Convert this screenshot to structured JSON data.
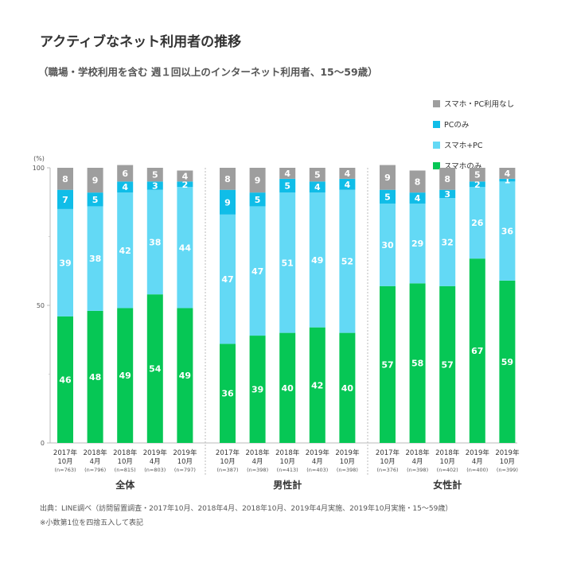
{
  "title": "アクティブなネット利用者の推移",
  "subtitle": "（職場・学校利用を含む 週１回以上のインターネット利用者、15〜59歳）",
  "source": "出典：LINE調べ（訪問留置調査・2017年10月、2018年4月、2018年10月、2019年4月実施、2019年10月実施・15〜59歳）",
  "note": "※小数第1位を四捨五入して表記",
  "chart_data": {
    "type": "bar",
    "stacked": true,
    "y_unit": "(%)",
    "ylim": [
      0,
      100
    ],
    "yticks": [
      0,
      50,
      100
    ],
    "legend_position": "top-right",
    "series": [
      {
        "name": "スマホのみ",
        "color": "#06c755"
      },
      {
        "name": "スマホ+PC",
        "color": "#63d9f5"
      },
      {
        "name": "PCのみ",
        "color": "#10bde8"
      },
      {
        "name": "スマホ・PC利用なし",
        "color": "#9e9e9e"
      }
    ],
    "legend_order": [
      3,
      2,
      1,
      0
    ],
    "groups": [
      {
        "name": "全体",
        "bars": [
          {
            "line1": "2017年",
            "line2": "10月",
            "n": "(n=763)",
            "values": [
              46,
              39,
              7,
              8
            ]
          },
          {
            "line1": "2018年",
            "line2": "4月",
            "n": "(n=796)",
            "values": [
              48,
              38,
              5,
              9
            ]
          },
          {
            "line1": "2018年",
            "line2": "10月",
            "n": "(n=815)",
            "values": [
              49,
              42,
              4,
              6
            ]
          },
          {
            "line1": "2019年",
            "line2": "4月",
            "n": "(n=803)",
            "values": [
              54,
              38,
              3,
              5
            ]
          },
          {
            "line1": "2019年",
            "line2": "10月",
            "n": "(n=797)",
            "values": [
              49,
              44,
              2,
              4
            ]
          }
        ]
      },
      {
        "name": "男性計",
        "bars": [
          {
            "line1": "2017年",
            "line2": "10月",
            "n": "(n=387)",
            "values": [
              36,
              47,
              9,
              8
            ]
          },
          {
            "line1": "2018年",
            "line2": "4月",
            "n": "(n=398)",
            "values": [
              39,
              47,
              5,
              9
            ]
          },
          {
            "line1": "2018年",
            "line2": "10月",
            "n": "(n=413)",
            "values": [
              40,
              51,
              5,
              4
            ]
          },
          {
            "line1": "2019年",
            "line2": "4月",
            "n": "(n=403)",
            "values": [
              42,
              49,
              4,
              5
            ]
          },
          {
            "line1": "2019年",
            "line2": "10月",
            "n": "(n=398)",
            "values": [
              40,
              52,
              4,
              4
            ]
          }
        ]
      },
      {
        "name": "女性計",
        "bars": [
          {
            "line1": "2017年",
            "line2": "10月",
            "n": "(n=376)",
            "values": [
              57,
              30,
              5,
              9
            ]
          },
          {
            "line1": "2018年",
            "line2": "4月",
            "n": "(n=398)",
            "values": [
              58,
              29,
              4,
              8
            ]
          },
          {
            "line1": "2018年",
            "line2": "10月",
            "n": "(n=402)",
            "values": [
              57,
              32,
              3,
              8
            ]
          },
          {
            "line1": "2019年",
            "line2": "4月",
            "n": "(n=400)",
            "values": [
              67,
              26,
              2,
              5
            ]
          },
          {
            "line1": "2019年",
            "line2": "10月",
            "n": "(n=399)",
            "values": [
              59,
              36,
              1,
              4
            ]
          }
        ]
      }
    ]
  }
}
